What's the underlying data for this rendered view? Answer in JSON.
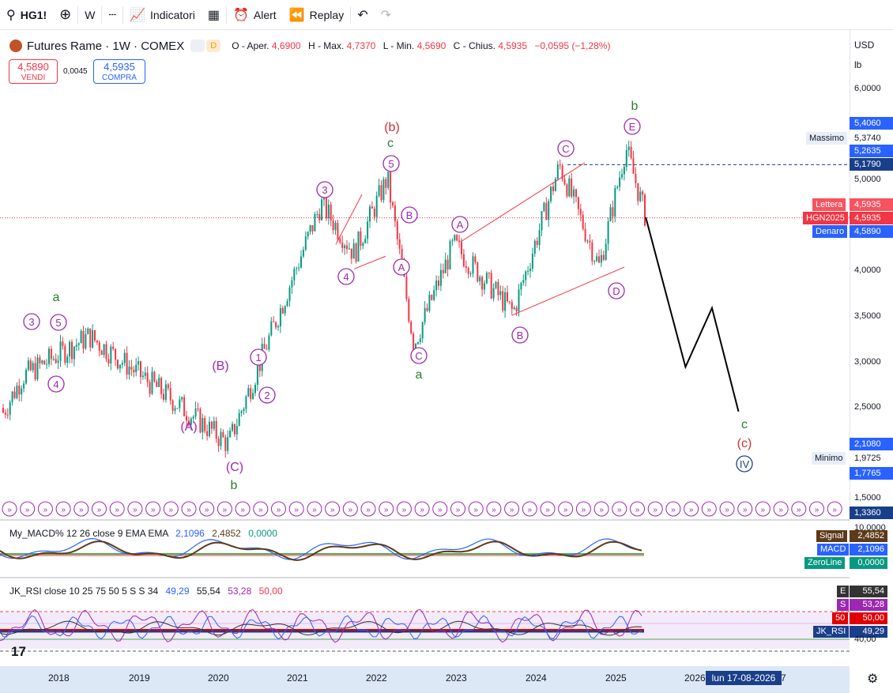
{
  "toolbar": {
    "symbol": "HG1!",
    "interval": "W",
    "indicators_label": "Indicatori",
    "alert_label": "Alert",
    "replay_label": "Replay"
  },
  "legend": {
    "title": "Futures Rame · 1W · COMEX",
    "badge_d": "D",
    "open_label": "O - Aper.",
    "open": "4,6900",
    "high_label": "H - Max.",
    "high": "4,7370",
    "low_label": "L - Min.",
    "low": "4,5690",
    "close_label": "C - Chius.",
    "close": "4,5935",
    "change": "−0,0595 (−1,28%)"
  },
  "trade": {
    "sell_price": "4,5890",
    "sell_label": "VENDI",
    "spread": "0,0045",
    "buy_price": "4,5935",
    "buy_label": "COMPRA"
  },
  "scale": {
    "currency": "USD",
    "unit": "lb",
    "ticks": [
      "6,0000",
      "5,0000",
      "4,5000",
      "4,0000",
      "3,5000",
      "3,0000",
      "2,5000",
      "1,5000"
    ],
    "tags": {
      "t5406": "5,4060",
      "massimo_label": "Massimo",
      "massimo": "5,3740",
      "t52635": "5,2635",
      "t51790": "5,1790",
      "lettera_label": "Lettera",
      "lettera": "4,5935",
      "hgn_label": "HGN2025",
      "hgn": "4,5935",
      "denaro_label": "Denaro",
      "denaro": "4,5890",
      "t21080": "2,1080",
      "minimo_label": "Minimo",
      "minimo": "1,9725",
      "t17765": "1,7765",
      "t13360": "1,3360"
    }
  },
  "time_axis": {
    "years": [
      "2018",
      "2019",
      "2020",
      "2021",
      "2022",
      "2023",
      "2024",
      "2025",
      "2026",
      "7"
    ],
    "cursor": "lun 17-08-2026"
  },
  "macd": {
    "title": "My_MACD% 12 26 close 9 EMA EMA",
    "v1": "2,1096",
    "v2": "2,4852",
    "v3": "0,0000",
    "scale_top": "10,0000",
    "signal_label": "Signal",
    "signal": "2,4852",
    "macd_label": "MACD",
    "macd": "2,1096",
    "zero_label": "ZeroLine",
    "zero": "0,0000"
  },
  "rsi": {
    "title": "JK_RSI close 10 25 75 50 5 S S 34",
    "v1": "49,29",
    "v2": "55,54",
    "v3": "53,28",
    "v4": "50,00",
    "e_label": "E",
    "e": "55,54",
    "s_label": "S",
    "s": "53,28",
    "f_label": "50",
    "f": "50,00",
    "jk_label": "JK_RSI",
    "jk": "49,29",
    "scale_low": "40,00"
  },
  "wave_labels": [
    "a",
    "3",
    "5",
    "4",
    "(A)",
    "(B)",
    "(C)",
    "b",
    "1",
    "2",
    "3",
    "4",
    "5",
    "c",
    "(b)",
    "B",
    "A",
    "C",
    "a",
    "A",
    "B",
    "C",
    "D",
    "E",
    "b",
    "c",
    "(c)",
    "IV"
  ],
  "colors": {
    "up": "#089981",
    "down": "#f23645",
    "wave_purple": "#9c27b0",
    "wave_green": "#2e7d32",
    "wave_red": "#d32f2f",
    "blue_tag": "#2962ff",
    "forecast": "#000000"
  },
  "chart_data": {
    "type": "candlestick",
    "title": "Futures Rame · 1W · COMEX",
    "ylim": [
      1.336,
      6.0
    ],
    "x": [
      "2017-08",
      "2018-06",
      "2019-06",
      "2020-03",
      "2021-05",
      "2021-10",
      "2022-03",
      "2022-07",
      "2023-01",
      "2023-10",
      "2024-05",
      "2024-11",
      "2025-03",
      "2025-06"
    ],
    "close": [
      2.85,
      3.29,
      2.62,
      2.1,
      4.75,
      4.2,
      5.03,
      3.2,
      4.3,
      3.55,
      5.17,
      4.05,
      5.37,
      4.5935
    ],
    "forecast": {
      "x": [
        "2025-06",
        "2025-12",
        "2026-04",
        "2026-08"
      ],
      "y": [
        4.6,
        2.95,
        3.6,
        2.46
      ]
    },
    "ohlc_last": {
      "open": 4.69,
      "high": 4.737,
      "low": 4.569,
      "close": 4.5935
    }
  }
}
